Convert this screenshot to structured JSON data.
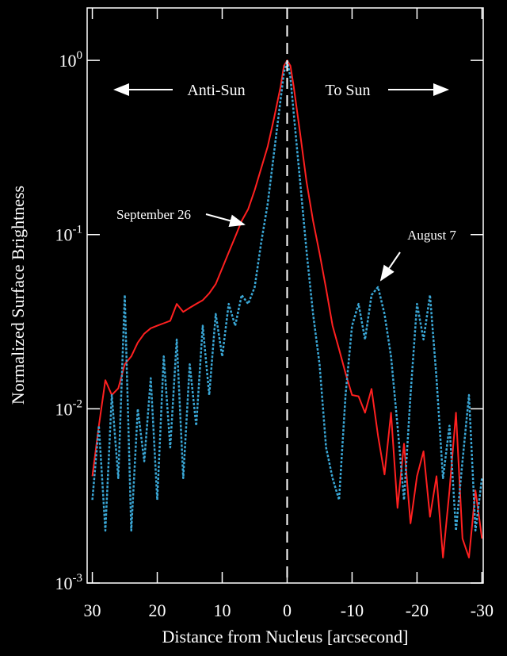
{
  "chart_data": {
    "type": "line",
    "xlabel": "Distance from Nucleus [arcsecond]",
    "ylabel": "Normalized Surface Brightness",
    "log_y": true,
    "annotations": {
      "anti_sun": "Anti-Sun",
      "to_sun": "To Sun",
      "september": "September 26",
      "august": "August 7"
    },
    "x": [
      30,
      29,
      28,
      27,
      26,
      25,
      24,
      23,
      22,
      21,
      20,
      19,
      18,
      17,
      16,
      15,
      14,
      13,
      12,
      11,
      10,
      9,
      8,
      7,
      6,
      5,
      4,
      3,
      2,
      1,
      0.5,
      0,
      -0.5,
      -1,
      -2,
      -3,
      -4,
      -5,
      -6,
      -7,
      -8,
      -9,
      -10,
      -11,
      -12,
      -13,
      -14,
      -15,
      -16,
      -17,
      -18,
      -19,
      -20,
      -21,
      -22,
      -23,
      -24,
      -25,
      -26,
      -27,
      -28,
      -29,
      -30
    ],
    "series": [
      {
        "name": "September 26",
        "color": "#ff2020",
        "dashed": false,
        "values": [
          0.0041,
          0.008,
          0.0146,
          0.012,
          0.0131,
          0.018,
          0.02,
          0.024,
          0.027,
          0.029,
          0.03,
          0.031,
          0.032,
          0.04,
          0.036,
          0.038,
          0.04,
          0.042,
          0.046,
          0.052,
          0.064,
          0.079,
          0.097,
          0.12,
          0.14,
          0.18,
          0.24,
          0.32,
          0.47,
          0.71,
          0.93,
          1,
          0.93,
          0.71,
          0.38,
          0.2,
          0.12,
          0.078,
          0.049,
          0.03,
          0.022,
          0.016,
          0.012,
          0.0118,
          0.0095,
          0.013,
          0.007,
          0.0042,
          0.0095,
          0.0027,
          0.0063,
          0.0022,
          0.0041,
          0.0057,
          0.0024,
          0.0041,
          0.0014,
          0.0034,
          0.0095,
          0.0018,
          0.0014,
          0.0034,
          0.0018
        ]
      },
      {
        "name": "August 7",
        "color": "#3aa7d6",
        "dashed": true,
        "values": [
          0.003,
          0.008,
          0.002,
          0.012,
          0.004,
          0.045,
          0.002,
          0.01,
          0.005,
          0.015,
          0.003,
          0.02,
          0.006,
          0.025,
          0.004,
          0.018,
          0.008,
          0.03,
          0.012,
          0.035,
          0.02,
          0.04,
          0.03,
          0.045,
          0.04,
          0.05,
          0.09,
          0.15,
          0.3,
          0.6,
          0.85,
          1,
          0.8,
          0.5,
          0.2,
          0.08,
          0.035,
          0.018,
          0.006,
          0.004,
          0.003,
          0.012,
          0.03,
          0.04,
          0.025,
          0.045,
          0.05,
          0.035,
          0.02,
          0.008,
          0.003,
          0.012,
          0.04,
          0.025,
          0.045,
          0.015,
          0.004,
          0.008,
          0.002,
          0.005,
          0.012,
          0.002,
          0.004
        ]
      }
    ],
    "xlim": [
      30.8,
      -30.2
    ],
    "xticks": [
      30,
      20,
      10,
      0,
      -10,
      -20,
      -30
    ],
    "ylim": [
      0.001,
      2
    ],
    "yticks": [
      {
        "value": 1,
        "label": "10",
        "exponent": "0"
      },
      {
        "value": 0.1,
        "label": "10",
        "exponent": "-1"
      },
      {
        "value": 0.01,
        "label": "10",
        "exponent": "-2"
      },
      {
        "value": 0.001,
        "label": "10",
        "exponent": "-3"
      }
    ]
  }
}
